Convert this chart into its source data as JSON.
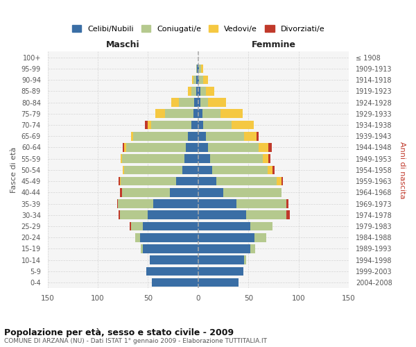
{
  "age_groups": [
    "0-4",
    "5-9",
    "10-14",
    "15-19",
    "20-24",
    "25-29",
    "30-34",
    "35-39",
    "40-44",
    "45-49",
    "50-54",
    "55-59",
    "60-64",
    "65-69",
    "70-74",
    "75-79",
    "80-84",
    "85-89",
    "90-94",
    "95-99",
    "100+"
  ],
  "birth_years": [
    "2004-2008",
    "1999-2003",
    "1994-1998",
    "1989-1993",
    "1984-1988",
    "1979-1983",
    "1974-1978",
    "1969-1973",
    "1964-1968",
    "1959-1963",
    "1954-1958",
    "1949-1953",
    "1944-1948",
    "1939-1943",
    "1934-1938",
    "1929-1933",
    "1924-1928",
    "1919-1923",
    "1914-1918",
    "1909-1913",
    "≤ 1908"
  ],
  "maschi": {
    "celibi": [
      46,
      52,
      48,
      55,
      58,
      55,
      50,
      45,
      28,
      22,
      16,
      14,
      12,
      10,
      7,
      5,
      4,
      2,
      2,
      1,
      0
    ],
    "coniugati": [
      0,
      0,
      0,
      2,
      5,
      12,
      28,
      35,
      48,
      55,
      58,
      62,
      60,
      55,
      40,
      28,
      15,
      5,
      3,
      1,
      0
    ],
    "vedovi": [
      0,
      0,
      0,
      0,
      0,
      0,
      0,
      0,
      0,
      1,
      1,
      1,
      2,
      2,
      3,
      10,
      8,
      3,
      1,
      0,
      0
    ],
    "divorziati": [
      0,
      0,
      0,
      0,
      0,
      1,
      1,
      1,
      2,
      1,
      0,
      0,
      1,
      0,
      3,
      0,
      0,
      0,
      0,
      0,
      0
    ]
  },
  "femmine": {
    "nubili": [
      40,
      45,
      46,
      52,
      56,
      52,
      48,
      38,
      25,
      18,
      14,
      12,
      10,
      8,
      5,
      4,
      2,
      2,
      1,
      1,
      0
    ],
    "coniugate": [
      0,
      0,
      2,
      5,
      12,
      22,
      40,
      50,
      58,
      60,
      55,
      52,
      50,
      38,
      28,
      18,
      8,
      6,
      4,
      2,
      0
    ],
    "vedove": [
      0,
      0,
      0,
      0,
      0,
      0,
      0,
      0,
      0,
      5,
      5,
      6,
      10,
      12,
      22,
      22,
      18,
      8,
      5,
      2,
      0
    ],
    "divorziate": [
      0,
      0,
      0,
      0,
      0,
      0,
      3,
      2,
      0,
      1,
      2,
      2,
      3,
      2,
      0,
      0,
      0,
      0,
      0,
      0,
      0
    ]
  },
  "colors": {
    "celibi": "#3a6ea5",
    "coniugati": "#b5c98e",
    "vedovi": "#f5c842",
    "divorziati": "#c0392b"
  },
  "title": "Popolazione per età, sesso e stato civile - 2009",
  "subtitle": "COMUNE DI ARZANA (NU) - Dati ISTAT 1° gennaio 2009 - Elaborazione TUTTITALIA.IT",
  "xlabel_maschi": "Maschi",
  "xlabel_femmine": "Femmine",
  "ylabel_left": "Fasce di età",
  "ylabel_right": "Anni di nascita",
  "xlim": 150,
  "bg_color": "#f5f5f5",
  "grid_color": "#cccccc"
}
